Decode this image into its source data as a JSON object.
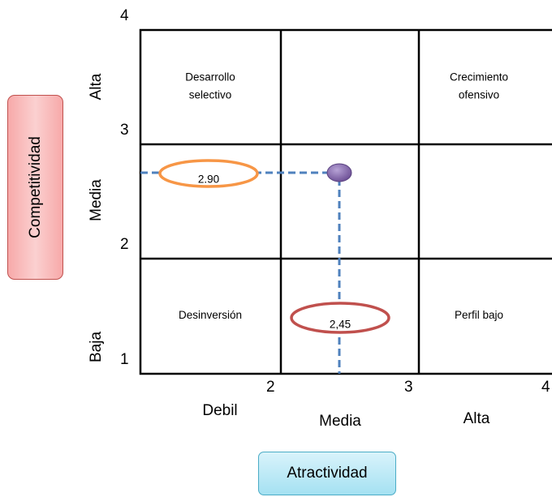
{
  "axis_y_title": "Competitividad",
  "axis_x_title": "Atractividad",
  "y_ticks": [
    "4",
    "3",
    "2",
    "1"
  ],
  "x_ticks": [
    "2",
    "3",
    "4"
  ],
  "row_labels": {
    "top": "Alta",
    "middle": "Media",
    "bottom": "Baja"
  },
  "col_labels": {
    "left": "Debil",
    "middle": "Media",
    "right": "Alta"
  },
  "cells": {
    "top_left": {
      "line1": "Desarrollo",
      "line2": "selectivo"
    },
    "top_right": {
      "line1": "Crecimiento",
      "line2": "ofensivo"
    },
    "bottom_left": "Desinversión",
    "bottom_right": "Perfil bajo"
  },
  "point": {
    "competitividad": 2.9,
    "atractividad": 2.45
  },
  "value_labels": {
    "competitividad": "2.90",
    "atractividad": "2,45"
  },
  "colors": {
    "grid": "#000000",
    "dashed_line": "#4f81bd",
    "point": "#8064a2",
    "competitividad_ellipse": "#f79646",
    "atractividad_ellipse": "#c0504d"
  }
}
